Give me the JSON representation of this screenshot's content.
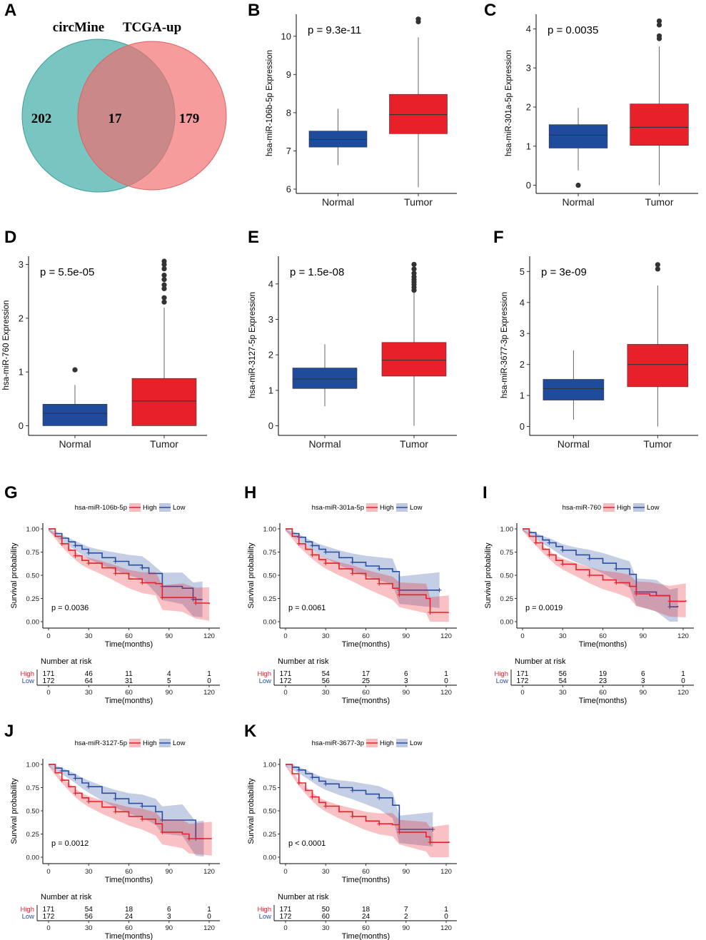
{
  "colors": {
    "normal_fill": "#1e4b9b",
    "tumor_fill": "#e8202a",
    "high": "#e8202a",
    "low": "#2a4e9f",
    "venn_left": "#5ab8b3",
    "venn_right": "#f26d6d"
  },
  "chart_data": [
    {
      "panel": "A",
      "type": "venn",
      "sets": [
        "circMine",
        "TCGA-up"
      ],
      "counts": {
        "left_only": "202",
        "overlap": "17",
        "right_only": "179"
      }
    },
    {
      "panel": "B",
      "type": "box",
      "ylabel": "hsa-miR-106b-5p Expression",
      "pvalue": "p = 9.3e-11",
      "ylim": [
        6,
        10.5
      ],
      "yticks": [
        "6",
        "7",
        "8",
        "9",
        "10"
      ],
      "categories": [
        "Normal",
        "Tumor"
      ],
      "boxes": [
        {
          "q1": 7.1,
          "median": 7.3,
          "q3": 7.52,
          "wlo": 6.63,
          "whi": 8.1,
          "outliers": []
        },
        {
          "q1": 7.45,
          "median": 7.95,
          "q3": 8.48,
          "wlo": 6.05,
          "whi": 9.97,
          "outliers": [
            10.38,
            10.45
          ]
        }
      ]
    },
    {
      "panel": "C",
      "type": "box",
      "ylabel": "hsa-miR-301a-5p Expression",
      "pvalue": "p = 0.0035",
      "ylim": [
        -0.1,
        4.3
      ],
      "yticks": [
        "0",
        "1",
        "2",
        "3",
        "4"
      ],
      "categories": [
        "Normal",
        "Tumor"
      ],
      "boxes": [
        {
          "q1": 0.95,
          "median": 1.28,
          "q3": 1.55,
          "wlo": 0.38,
          "whi": 1.98,
          "outliers": [
            0
          ]
        },
        {
          "q1": 1.02,
          "median": 1.48,
          "q3": 2.08,
          "wlo": 0,
          "whi": 3.55,
          "outliers": [
            3.75,
            3.82,
            4.1,
            4.2
          ]
        }
      ]
    },
    {
      "panel": "D",
      "type": "box",
      "ylabel": "hsa-miR-760 Expression",
      "pvalue": "p = 5.5e-05",
      "ylim": [
        -0.1,
        3.1
      ],
      "yticks": [
        "0",
        "1",
        "2",
        "3"
      ],
      "categories": [
        "Normal",
        "Tumor"
      ],
      "boxes": [
        {
          "q1": 0,
          "median": 0.23,
          "q3": 0.4,
          "wlo": 0,
          "whi": 0.76,
          "outliers": [
            1.04
          ]
        },
        {
          "q1": 0,
          "median": 0.46,
          "q3": 0.88,
          "wlo": 0,
          "whi": 2.2,
          "outliers": [
            2.3,
            2.38,
            2.55,
            2.62,
            2.72,
            2.8,
            2.92,
            3.0,
            3.06
          ]
        }
      ]
    },
    {
      "panel": "E",
      "type": "box",
      "ylabel": "hsa-miR-3127-5p Expression",
      "pvalue": "p = 1.5e-08",
      "ylim": [
        -0.15,
        4.7
      ],
      "yticks": [
        "0",
        "1",
        "2",
        "3",
        "4"
      ],
      "categories": [
        "Normal",
        "Tumor"
      ],
      "boxes": [
        {
          "q1": 1.05,
          "median": 1.32,
          "q3": 1.63,
          "wlo": 0.55,
          "whi": 2.3,
          "outliers": []
        },
        {
          "q1": 1.4,
          "median": 1.85,
          "q3": 2.35,
          "wlo": 0,
          "whi": 3.75,
          "outliers": [
            3.82,
            3.9,
            3.98,
            4.05,
            4.12,
            4.2,
            4.3,
            4.42,
            4.55
          ]
        }
      ]
    },
    {
      "panel": "F",
      "type": "box",
      "ylabel": "hsa-miR-3677-3p Expression",
      "pvalue": "p = 3e-09",
      "ylim": [
        -0.15,
        5.4
      ],
      "yticks": [
        "0",
        "1",
        "2",
        "3",
        "4",
        "5"
      ],
      "categories": [
        "Normal",
        "Tumor"
      ],
      "boxes": [
        {
          "q1": 0.85,
          "median": 1.22,
          "q3": 1.52,
          "wlo": 0.22,
          "whi": 2.45,
          "outliers": []
        },
        {
          "q1": 1.28,
          "median": 2.0,
          "q3": 2.65,
          "wlo": 0,
          "whi": 4.55,
          "outliers": [
            5.08,
            5.22
          ]
        }
      ]
    },
    {
      "panel": "G",
      "type": "km",
      "gene": "hsa-miR-106b-5p",
      "pvalue": "p = 0.0036",
      "legend": [
        "High",
        "Low"
      ],
      "ylabel": "Survival probability",
      "xlabel": "Time(months)",
      "xticks": [
        "0",
        "30",
        "60",
        "90",
        "120"
      ],
      "yticks": [
        "0.00",
        "0.25",
        "0.50",
        "0.75",
        "1.00"
      ],
      "risk_title": "Number at risk",
      "high_curve": [
        [
          0,
          1
        ],
        [
          5,
          0.92
        ],
        [
          10,
          0.84
        ],
        [
          15,
          0.77
        ],
        [
          20,
          0.71
        ],
        [
          25,
          0.66
        ],
        [
          30,
          0.63
        ],
        [
          40,
          0.58
        ],
        [
          50,
          0.52
        ],
        [
          60,
          0.46
        ],
        [
          70,
          0.42
        ],
        [
          80,
          0.41
        ],
        [
          85,
          0.26
        ],
        [
          100,
          0.26
        ],
        [
          110,
          0.2
        ],
        [
          120,
          0.19
        ]
      ],
      "low_curve": [
        [
          0,
          1
        ],
        [
          5,
          0.95
        ],
        [
          10,
          0.9
        ],
        [
          15,
          0.86
        ],
        [
          20,
          0.82
        ],
        [
          25,
          0.78
        ],
        [
          30,
          0.74
        ],
        [
          40,
          0.69
        ],
        [
          50,
          0.65
        ],
        [
          60,
          0.61
        ],
        [
          70,
          0.58
        ],
        [
          75,
          0.52
        ],
        [
          85,
          0.38
        ],
        [
          100,
          0.36
        ],
        [
          108,
          0.24
        ],
        [
          115,
          0.24
        ]
      ],
      "risk": {
        "High": [
          "171",
          "46",
          "11",
          "4",
          "1"
        ],
        "Low": [
          "172",
          "64",
          "31",
          "5",
          "0"
        ]
      }
    },
    {
      "panel": "H",
      "type": "km",
      "gene": "hsa-miR-301a-5p",
      "pvalue": "p = 0.0061",
      "legend": [
        "High",
        "Low"
      ],
      "ylabel": "Survival probability",
      "xlabel": "Time(months)",
      "xticks": [
        "0",
        "30",
        "60",
        "90",
        "120"
      ],
      "yticks": [
        "0.00",
        "0.25",
        "0.50",
        "0.75",
        "1.00"
      ],
      "risk_title": "Number at risk",
      "high_curve": [
        [
          0,
          1
        ],
        [
          5,
          0.92
        ],
        [
          10,
          0.84
        ],
        [
          15,
          0.78
        ],
        [
          20,
          0.72
        ],
        [
          25,
          0.67
        ],
        [
          30,
          0.63
        ],
        [
          40,
          0.57
        ],
        [
          50,
          0.52
        ],
        [
          60,
          0.46
        ],
        [
          70,
          0.41
        ],
        [
          80,
          0.36
        ],
        [
          85,
          0.29
        ],
        [
          105,
          0.25
        ],
        [
          108,
          0.1
        ],
        [
          122,
          0.1
        ]
      ],
      "low_curve": [
        [
          0,
          1
        ],
        [
          5,
          0.95
        ],
        [
          10,
          0.91
        ],
        [
          15,
          0.86
        ],
        [
          20,
          0.82
        ],
        [
          25,
          0.78
        ],
        [
          30,
          0.75
        ],
        [
          40,
          0.69
        ],
        [
          50,
          0.64
        ],
        [
          60,
          0.6
        ],
        [
          70,
          0.57
        ],
        [
          80,
          0.54
        ],
        [
          85,
          0.34
        ],
        [
          105,
          0.34
        ],
        [
          115,
          0.34
        ]
      ],
      "risk": {
        "High": [
          "171",
          "54",
          "17",
          "6",
          "1"
        ],
        "Low": [
          "172",
          "56",
          "25",
          "3",
          "0"
        ]
      }
    },
    {
      "panel": "I",
      "type": "km",
      "gene": "hsa-miR-760",
      "pvalue": "p = 0.0019",
      "legend": [
        "High",
        "Low"
      ],
      "ylabel": "Survival probability",
      "xlabel": "Time(months)",
      "xticks": [
        "0",
        "30",
        "60",
        "90",
        "120"
      ],
      "yticks": [
        "0.00",
        "0.25",
        "0.50",
        "0.75",
        "1.00"
      ],
      "risk_title": "Number at risk",
      "high_curve": [
        [
          0,
          1
        ],
        [
          5,
          0.92
        ],
        [
          10,
          0.85
        ],
        [
          15,
          0.78
        ],
        [
          20,
          0.72
        ],
        [
          25,
          0.66
        ],
        [
          30,
          0.62
        ],
        [
          40,
          0.56
        ],
        [
          50,
          0.5
        ],
        [
          60,
          0.45
        ],
        [
          70,
          0.42
        ],
        [
          80,
          0.38
        ],
        [
          85,
          0.3
        ],
        [
          95,
          0.28
        ],
        [
          110,
          0.22
        ],
        [
          122,
          0.23
        ]
      ],
      "low_curve": [
        [
          0,
          1
        ],
        [
          5,
          0.96
        ],
        [
          10,
          0.92
        ],
        [
          15,
          0.88
        ],
        [
          20,
          0.85
        ],
        [
          25,
          0.81
        ],
        [
          30,
          0.77
        ],
        [
          40,
          0.72
        ],
        [
          50,
          0.68
        ],
        [
          60,
          0.63
        ],
        [
          70,
          0.57
        ],
        [
          80,
          0.51
        ],
        [
          85,
          0.32
        ],
        [
          100,
          0.28
        ],
        [
          110,
          0.16
        ],
        [
          116,
          0.17
        ]
      ],
      "risk": {
        "High": [
          "171",
          "56",
          "19",
          "6",
          "1"
        ],
        "Low": [
          "172",
          "54",
          "23",
          "3",
          "0"
        ]
      }
    },
    {
      "panel": "J",
      "type": "km",
      "gene": "hsa-miR-3127-5p",
      "pvalue": "p = 0.0012",
      "legend": [
        "High",
        "Low"
      ],
      "ylabel": "Survival probability",
      "xlabel": "Time(months)",
      "xticks": [
        "0",
        "30",
        "60",
        "90",
        "120"
      ],
      "yticks": [
        "0.00",
        "0.25",
        "0.50",
        "0.75",
        "1.00"
      ],
      "risk_title": "Number at risk",
      "high_curve": [
        [
          0,
          1
        ],
        [
          5,
          0.91
        ],
        [
          10,
          0.83
        ],
        [
          15,
          0.76
        ],
        [
          20,
          0.69
        ],
        [
          25,
          0.64
        ],
        [
          30,
          0.6
        ],
        [
          40,
          0.54
        ],
        [
          50,
          0.49
        ],
        [
          60,
          0.44
        ],
        [
          70,
          0.41
        ],
        [
          80,
          0.36
        ],
        [
          85,
          0.27
        ],
        [
          100,
          0.25
        ],
        [
          105,
          0.2
        ],
        [
          122,
          0.2
        ]
      ],
      "low_curve": [
        [
          0,
          1
        ],
        [
          5,
          0.96
        ],
        [
          10,
          0.93
        ],
        [
          15,
          0.89
        ],
        [
          20,
          0.85
        ],
        [
          25,
          0.8
        ],
        [
          30,
          0.76
        ],
        [
          40,
          0.69
        ],
        [
          50,
          0.63
        ],
        [
          60,
          0.58
        ],
        [
          70,
          0.55
        ],
        [
          80,
          0.49
        ],
        [
          85,
          0.4
        ],
        [
          100,
          0.4
        ],
        [
          110,
          0.2
        ],
        [
          116,
          0.2
        ]
      ],
      "risk": {
        "High": [
          "171",
          "54",
          "18",
          "6",
          "1"
        ],
        "Low": [
          "172",
          "56",
          "24",
          "3",
          "0"
        ]
      }
    },
    {
      "panel": "K",
      "type": "km",
      "gene": "hsa-miR-3677-3p",
      "pvalue": "p < 0.0001",
      "legend": [
        "High",
        "Low"
      ],
      "ylabel": "Survival probability",
      "xlabel": "Time(months)",
      "xticks": [
        "0",
        "30",
        "60",
        "90",
        "120"
      ],
      "yticks": [
        "0.00",
        "0.25",
        "0.50",
        "0.75",
        "1.00"
      ],
      "risk_title": "Number at risk",
      "high_curve": [
        [
          0,
          1
        ],
        [
          5,
          0.9
        ],
        [
          10,
          0.8
        ],
        [
          15,
          0.72
        ],
        [
          20,
          0.65
        ],
        [
          25,
          0.59
        ],
        [
          30,
          0.55
        ],
        [
          40,
          0.49
        ],
        [
          50,
          0.44
        ],
        [
          60,
          0.39
        ],
        [
          70,
          0.36
        ],
        [
          80,
          0.35
        ],
        [
          85,
          0.27
        ],
        [
          105,
          0.22
        ],
        [
          108,
          0.16
        ],
        [
          122,
          0.17
        ]
      ],
      "low_curve": [
        [
          0,
          1
        ],
        [
          5,
          0.97
        ],
        [
          10,
          0.94
        ],
        [
          15,
          0.9
        ],
        [
          20,
          0.86
        ],
        [
          25,
          0.82
        ],
        [
          30,
          0.79
        ],
        [
          40,
          0.75
        ],
        [
          50,
          0.72
        ],
        [
          60,
          0.68
        ],
        [
          70,
          0.64
        ],
        [
          80,
          0.56
        ],
        [
          85,
          0.3
        ],
        [
          100,
          0.3
        ],
        [
          110,
          0.3
        ]
      ],
      "risk": {
        "High": [
          "171",
          "50",
          "18",
          "7",
          "1"
        ],
        "Low": [
          "172",
          "60",
          "24",
          "2",
          "0"
        ]
      }
    }
  ]
}
